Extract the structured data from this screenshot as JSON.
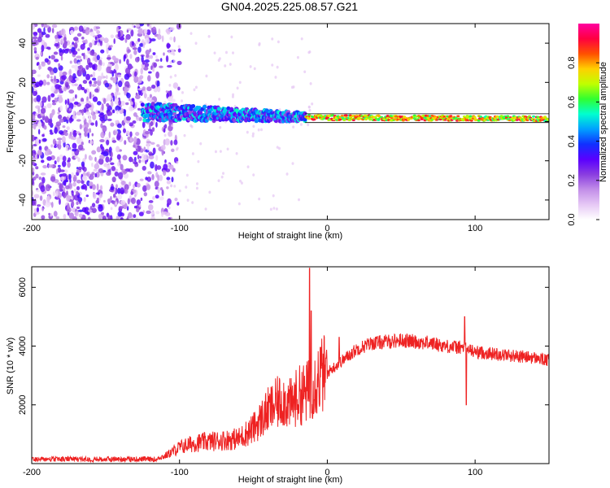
{
  "title": "GN04.2025.225.08.57.G21",
  "colors": {
    "snr_line": "#ee2222",
    "background": "#ffffff",
    "axis": "#000000",
    "colormap": [
      "#ffffff",
      "#e6c8f5",
      "#c28ee8",
      "#8a3de0",
      "#5a00ff",
      "#1030ff",
      "#00a0ff",
      "#00ffd0",
      "#30ff30",
      "#c0ff00",
      "#ffd000",
      "#ff5000",
      "#ff0040",
      "#ff00a0"
    ]
  },
  "chart_data": [
    {
      "type": "heatmap",
      "name": "spectrogram",
      "xlabel": "Height of straight line (km)",
      "ylabel": "Frequency (Hz)",
      "xlim": [
        -200,
        150
      ],
      "ylim": [
        -50,
        50
      ],
      "xticks": [
        -200,
        -100,
        0,
        100
      ],
      "yticks": [
        -40,
        -20,
        0,
        20,
        40
      ],
      "colorbar": {
        "label": "Normalized spectral amplitude",
        "range": [
          0,
          1
        ],
        "ticks": [
          "0.0",
          "0.2",
          "0.4",
          "0.6",
          "0.8"
        ]
      },
      "features": {
        "noise_region_km": [
          -200,
          -110
        ],
        "signal_onset_km": -125,
        "signal_center_hz_at_onset": 5,
        "signal_center_hz_at_0km": 2,
        "signal_center_hz_at_end": 1.5,
        "peak_band_km": [
          -15,
          150
        ]
      }
    },
    {
      "type": "line",
      "name": "snr",
      "xlabel": "Height of straight line (km)",
      "ylabel": "SNR (10 * v/v)",
      "xlim": [
        -200,
        150
      ],
      "ylim": [
        0,
        6700
      ],
      "xticks": [
        -200,
        -100,
        0,
        100
      ],
      "yticks": [
        2000,
        4000,
        6000
      ],
      "grid": false,
      "series": [
        {
          "x": [
            -200,
            -180,
            -160,
            -140,
            -120,
            -110,
            -100,
            -90,
            -80,
            -70,
            -60,
            -50,
            -45,
            -40,
            -35,
            -30,
            -25,
            -20,
            -15,
            -12,
            -10,
            -8,
            -5,
            0,
            5,
            10,
            20,
            30,
            40,
            50,
            60,
            70,
            80,
            90,
            95,
            100,
            110,
            120,
            130,
            140,
            150
          ],
          "values": [
            100,
            110,
            120,
            130,
            150,
            250,
            550,
            700,
            750,
            800,
            850,
            1200,
            1500,
            1800,
            2000,
            2200,
            2000,
            2300,
            2400,
            2500,
            2700,
            2800,
            3000,
            3100,
            3300,
            3500,
            3900,
            4100,
            4150,
            4200,
            4150,
            4100,
            4000,
            3950,
            3900,
            3800,
            3750,
            3700,
            3650,
            3600,
            3500
          ],
          "spikes": [
            {
              "x": -12,
              "value": 6650
            },
            {
              "x": -11,
              "value": 5200
            },
            {
              "x": 93,
              "value": 5000
            },
            {
              "x": 94,
              "value": 2000
            },
            {
              "x": 8,
              "value": 4300
            }
          ]
        }
      ]
    }
  ]
}
